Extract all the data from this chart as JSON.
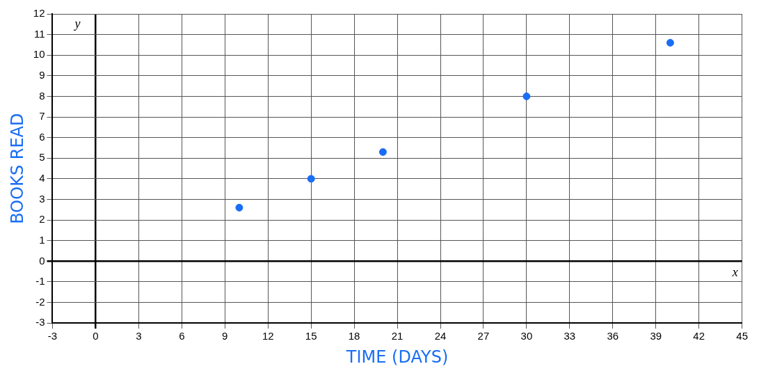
{
  "chart_data": {
    "type": "scatter",
    "xlabel": "TIME (DAYS)",
    "ylabel": "BOOKS READ",
    "annotations": [
      "x",
      "y"
    ],
    "x": [
      10,
      15,
      20,
      30,
      40
    ],
    "series": [
      {
        "color": "#1a6ef5",
        "values": [
          2.6,
          4,
          5.3,
          8,
          10.6
        ]
      }
    ],
    "xlim": [
      -3,
      45
    ],
    "xticks": [
      -3,
      0,
      3,
      6,
      9,
      12,
      15,
      18,
      21,
      24,
      27,
      30,
      33,
      36,
      39,
      42,
      45
    ],
    "ylim": [
      -3,
      12
    ],
    "yticks": [
      -3,
      -2,
      -1,
      0,
      1,
      2,
      3,
      4,
      5,
      6,
      7,
      8,
      9,
      10,
      11,
      12
    ],
    "grid": true,
    "legend": false,
    "marker": "circle"
  }
}
